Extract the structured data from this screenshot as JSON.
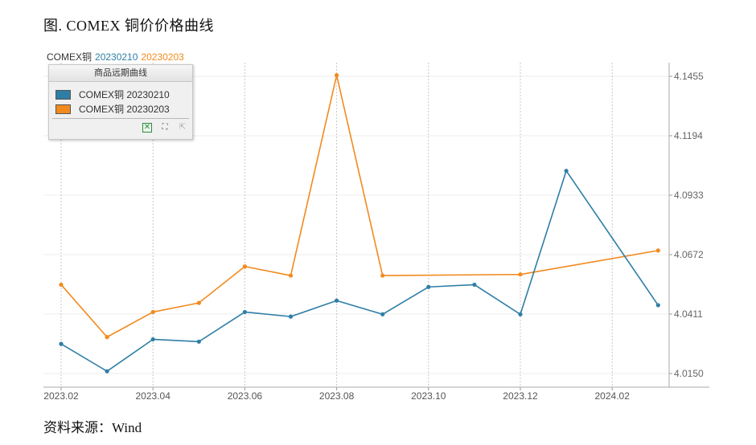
{
  "figure_title": "图. COMEX 铜价价格曲线",
  "source_note": "资料来源：Wind",
  "series_header": {
    "prefix": "COMEX铜",
    "items": [
      {
        "label": "20230210",
        "color": "#2e7ea6"
      },
      {
        "label": "20230203",
        "color": "#f28a1e"
      }
    ]
  },
  "legend": {
    "title": "商品远期曲线",
    "items": [
      "COMEX铜 20230210",
      "COMEX铜 20230203"
    ],
    "tools": [
      {
        "name": "export-excel-icon",
        "glyph": "✕"
      },
      {
        "name": "crop-icon",
        "glyph": "⛶"
      },
      {
        "name": "cursor-icon",
        "glyph": "⇱"
      }
    ]
  },
  "chart_data": {
    "type": "line",
    "title": "",
    "xlabel": "",
    "ylabel": "",
    "x": [
      "2023-02",
      "2023-03",
      "2023-04",
      "2023-05",
      "2023-06",
      "2023-07",
      "2023-08",
      "2023-09",
      "2023-10",
      "2023-11",
      "2023-12",
      "2024-01",
      "2024-03"
    ],
    "x_ticks": [
      "2023.02",
      "2023.04",
      "2023.06",
      "2023.08",
      "2023.10",
      "2023.12",
      "2024.02"
    ],
    "y_ticks": [
      "4.0150",
      "4.0411",
      "4.0672",
      "4.0933",
      "4.1194",
      "4.1455"
    ],
    "ylim": [
      4.015,
      4.1455
    ],
    "grid": true,
    "legend_position": "top-left",
    "series": [
      {
        "name": "COMEX铜 20230210",
        "color": "#2e7ea6",
        "x": [
          "2023-02",
          "2023-03",
          "2023-04",
          "2023-05",
          "2023-06",
          "2023-07",
          "2023-08",
          "2023-09",
          "2023-10",
          "2023-11",
          "2023-12",
          "2024-01",
          "2024-03"
        ],
        "values": [
          4.028,
          4.016,
          4.03,
          4.029,
          4.042,
          4.04,
          4.047,
          4.041,
          4.053,
          4.054,
          4.041,
          4.104,
          4.045
        ]
      },
      {
        "name": "COMEX铜 20230203",
        "color": "#f28a1e",
        "x": [
          "2023-02",
          "2023-03",
          "2023-04",
          "2023-05",
          "2023-06",
          "2023-07",
          "2023-08",
          "2023-09",
          "2023-12",
          "2024-03"
        ],
        "values": [
          4.054,
          4.031,
          4.042,
          4.046,
          4.062,
          4.058,
          4.146,
          4.058,
          4.0585,
          4.069
        ]
      }
    ]
  }
}
